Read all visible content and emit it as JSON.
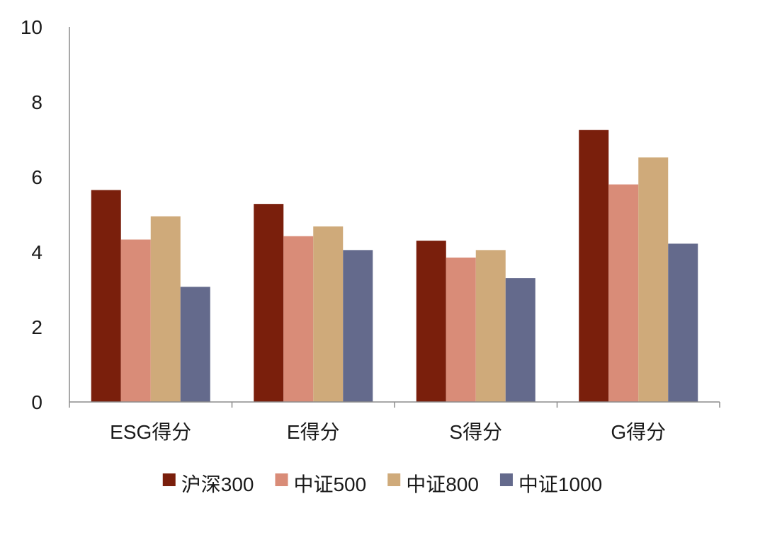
{
  "chart_data": {
    "type": "bar",
    "categories": [
      "ESG得分",
      "E得分",
      "S得分",
      "G得分"
    ],
    "series": [
      {
        "name": "沪深300",
        "color": "#7a1f0c",
        "values": [
          5.65,
          5.28,
          4.3,
          7.25
        ]
      },
      {
        "name": "中证500",
        "color": "#d98c78",
        "values": [
          4.33,
          4.42,
          3.85,
          5.8
        ]
      },
      {
        "name": "中证800",
        "color": "#cfaa7a",
        "values": [
          4.95,
          4.68,
          4.05,
          6.52
        ]
      },
      {
        "name": "中证1000",
        "color": "#646a8c",
        "values": [
          3.07,
          4.05,
          3.3,
          4.22
        ]
      }
    ],
    "ylim": [
      0,
      10
    ],
    "yticks": [
      0,
      2,
      4,
      6,
      8,
      10
    ],
    "grid": false,
    "legend": "bottom",
    "title": "",
    "xlabel": "",
    "ylabel": ""
  }
}
